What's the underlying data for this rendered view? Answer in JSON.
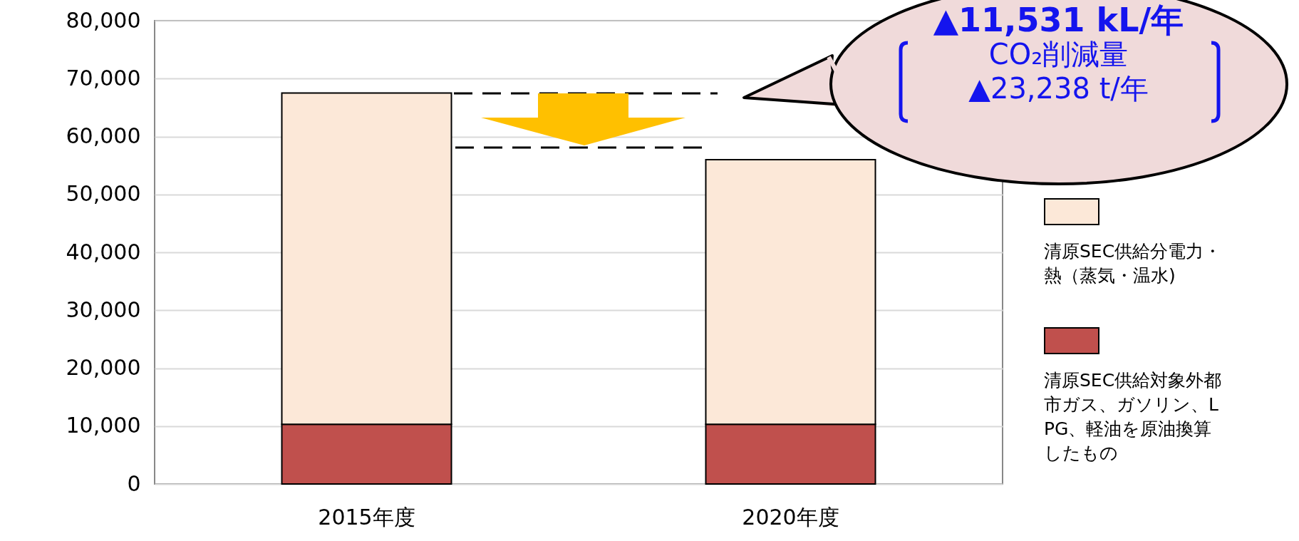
{
  "chart_data": {
    "type": "bar",
    "stacked": true,
    "categories": [
      "2015年度",
      "2020年度"
    ],
    "series": [
      {
        "name": "清原SEC供給対象外都市ガス、ガソリン、LPG、軽油を原油換算したもの",
        "color": "#c0504d",
        "values": [
          10300,
          10300
        ]
      },
      {
        "name": "清原SEC供給分電力・熱（蒸気・温水)",
        "color": "#fce8d8",
        "values": [
          57200,
          45700
        ]
      }
    ],
    "ylim": [
      0,
      80000
    ],
    "yticks": [
      0,
      {
        "value": 10000,
        "label": "10,000"
      },
      {
        "value": 20000,
        "label": "20,000"
      },
      {
        "value": 30000,
        "label": "30,000"
      },
      {
        "value": 40000,
        "label": "40,000"
      },
      {
        "value": 50000,
        "label": "50,000"
      },
      {
        "value": 60000,
        "label": "60,000"
      },
      {
        "value": 70000,
        "label": "70,000"
      },
      {
        "value": 80000,
        "label": "80,000"
      }
    ],
    "grid": "y",
    "legend": "right",
    "annotations": [
      "▲11,531 kL/年",
      "CO₂削減量",
      "▲23,238 t/年"
    ]
  }
}
